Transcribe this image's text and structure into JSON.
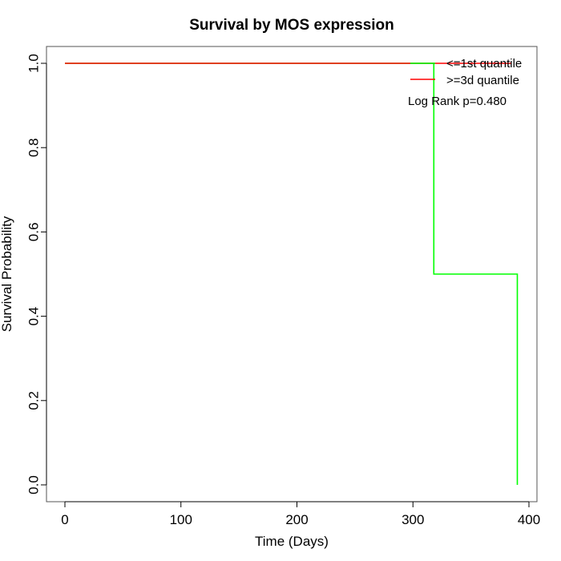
{
  "chart_data": {
    "type": "line",
    "title": "Survival by MOS expression",
    "xlabel": "Time (Days)",
    "ylabel": "Survival Probability",
    "xlim": [
      0,
      400
    ],
    "ylim": [
      0,
      1
    ],
    "x_ticks": [
      0,
      100,
      200,
      300,
      400
    ],
    "y_ticks": [
      0.0,
      0.2,
      0.4,
      0.6,
      0.8,
      1.0
    ],
    "x_tick_labels": [
      "0",
      "100",
      "200",
      "300",
      "400"
    ],
    "y_tick_labels": [
      "0.0",
      "0.2",
      "0.4",
      "0.6",
      "0.8",
      "1.0"
    ],
    "grid": false,
    "legend_position": "top-right",
    "series": [
      {
        "name": "<=1st quantile",
        "color": "#00ff00",
        "step": true,
        "points": [
          [
            0,
            1.0
          ],
          [
            318,
            1.0
          ],
          [
            318,
            0.5
          ],
          [
            390,
            0.5
          ],
          [
            390,
            0.0
          ]
        ]
      },
      {
        "name": ">=3d quantile",
        "color": "#ff0000",
        "step": true,
        "points": [
          [
            0,
            1.0
          ],
          [
            385,
            1.0
          ]
        ]
      }
    ],
    "annotation": "Log Rank p=0.480"
  }
}
